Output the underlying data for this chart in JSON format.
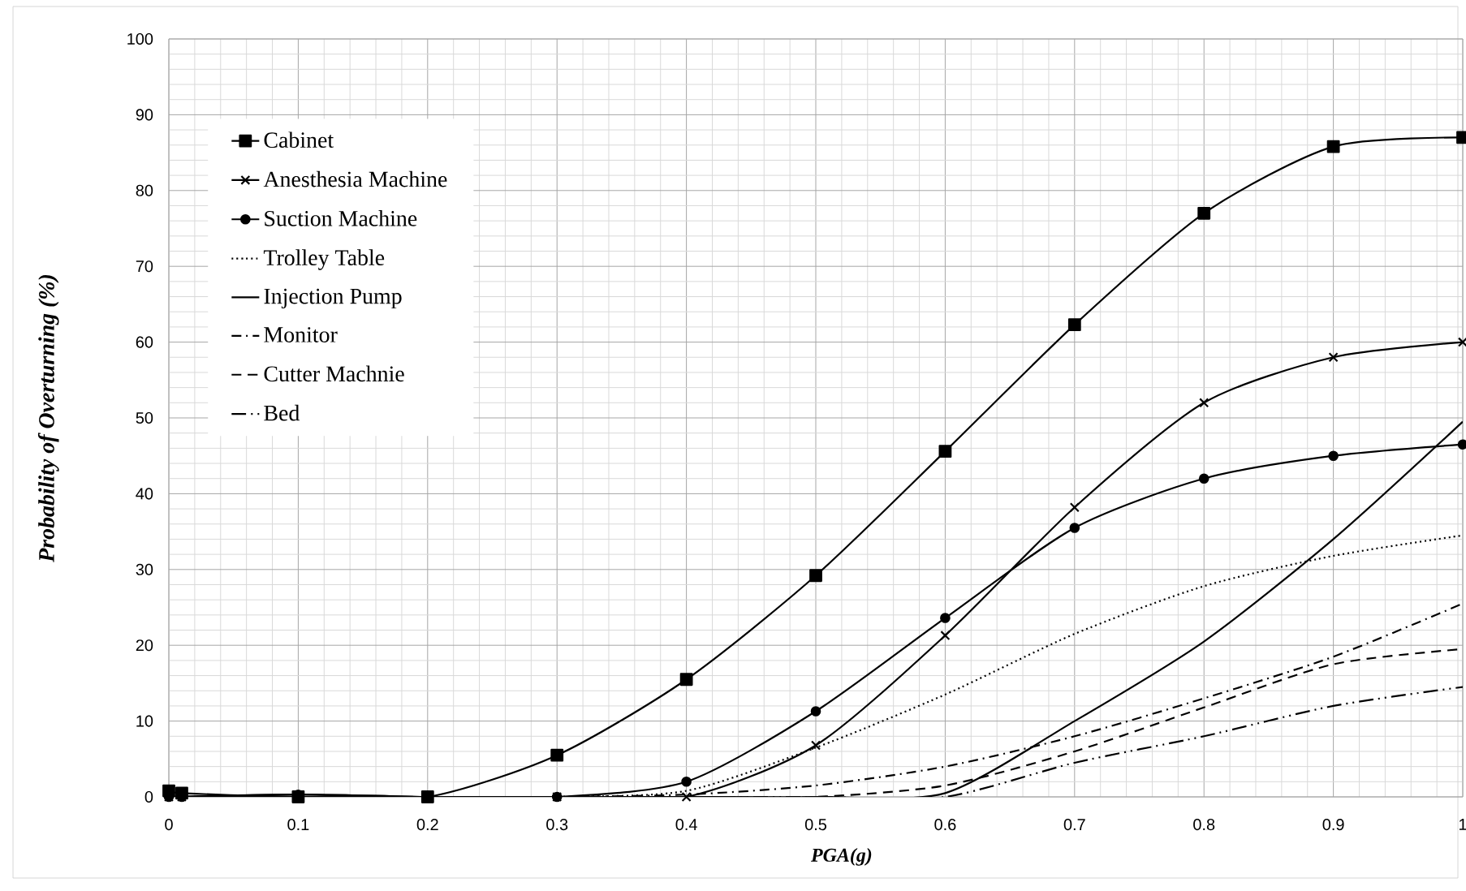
{
  "chart_data": {
    "type": "line",
    "xlabel": "PGA(g)",
    "ylabel": "Probability of Overturning (%)",
    "xlim": [
      0,
      1
    ],
    "ylim": [
      0,
      100
    ],
    "xticks": [
      0,
      0.1,
      0.2,
      0.3,
      0.4,
      0.5,
      0.6,
      0.7,
      0.8,
      0.9,
      1
    ],
    "yticks": [
      0,
      10,
      20,
      30,
      40,
      50,
      60,
      70,
      80,
      90,
      100
    ],
    "grid": true,
    "legend": "top left",
    "series": [
      {
        "name": "Cabinet",
        "color": "#000000",
        "marker": "square",
        "line_style": "solid",
        "x": [
          0,
          0.01,
          0.1,
          0.2,
          0.3,
          0.4,
          0.5,
          0.6,
          0.7,
          0.8,
          0.9,
          1
        ],
        "values": [
          0.8,
          0.5,
          0,
          0,
          5.5,
          15.5,
          29.2,
          45.6,
          62.3,
          77,
          85.8,
          87
        ]
      },
      {
        "name": "Anesthesia Machine",
        "color": "#000000",
        "marker": "cross",
        "line_style": "solid",
        "x": [
          0,
          0.01,
          0.1,
          0.2,
          0.3,
          0.4,
          0.5,
          0.6,
          0.7,
          0.8,
          0.9,
          1
        ],
        "values": [
          0,
          0,
          0,
          0,
          0,
          0,
          6.8,
          21.3,
          38.2,
          52,
          58,
          60
        ]
      },
      {
        "name": "Suction Machine",
        "color": "#000000",
        "marker": "circle",
        "line_style": "solid",
        "x": [
          0,
          0.01,
          0.1,
          0.2,
          0.3,
          0.4,
          0.5,
          0.6,
          0.7,
          0.8,
          0.9,
          1
        ],
        "values": [
          0,
          0,
          0.3,
          0,
          0,
          2,
          11.3,
          23.6,
          35.5,
          42,
          45,
          46.5
        ]
      },
      {
        "name": "Trolley Table",
        "color": "#000000",
        "marker": "none",
        "line_style": "dotted",
        "x": [
          0,
          0.1,
          0.2,
          0.3,
          0.4,
          0.5,
          0.6,
          0.7,
          0.8,
          0.9,
          1
        ],
        "values": [
          0,
          0,
          0,
          0,
          0.8,
          6.5,
          13.5,
          21.5,
          27.8,
          31.8,
          34.5
        ]
      },
      {
        "name": "Injection Pump",
        "color": "#000000",
        "marker": "none",
        "line_style": "solid",
        "x": [
          0,
          0.1,
          0.2,
          0.3,
          0.4,
          0.5,
          0.6,
          0.7,
          0.8,
          0.9,
          1
        ],
        "values": [
          0,
          0.3,
          0,
          0,
          0,
          0,
          0.5,
          10,
          20.5,
          34,
          49.5
        ]
      },
      {
        "name": "Monitor",
        "color": "#000000",
        "marker": "none",
        "line_style": "dashdot",
        "x": [
          0,
          0.1,
          0.2,
          0.3,
          0.4,
          0.5,
          0.6,
          0.7,
          0.8,
          0.9,
          1
        ],
        "values": [
          0,
          0,
          0,
          0,
          0.3,
          1.5,
          4,
          8,
          13,
          18.5,
          25.5
        ]
      },
      {
        "name": "Cutter Machnie",
        "color": "#000000",
        "marker": "none",
        "line_style": "dashed",
        "x": [
          0,
          0.1,
          0.2,
          0.3,
          0.4,
          0.5,
          0.6,
          0.7,
          0.8,
          0.9,
          1
        ],
        "values": [
          0,
          0,
          0,
          0,
          0,
          0,
          1.5,
          6,
          11.8,
          17.5,
          19.5
        ]
      },
      {
        "name": "Bed",
        "color": "#000000",
        "marker": "none",
        "line_style": "dashdotdot",
        "x": [
          0,
          0.1,
          0.2,
          0.3,
          0.4,
          0.5,
          0.6,
          0.7,
          0.8,
          0.9,
          1
        ],
        "values": [
          0,
          0,
          0,
          0,
          0,
          0,
          0,
          4.5,
          8,
          12,
          14.5
        ]
      }
    ]
  }
}
